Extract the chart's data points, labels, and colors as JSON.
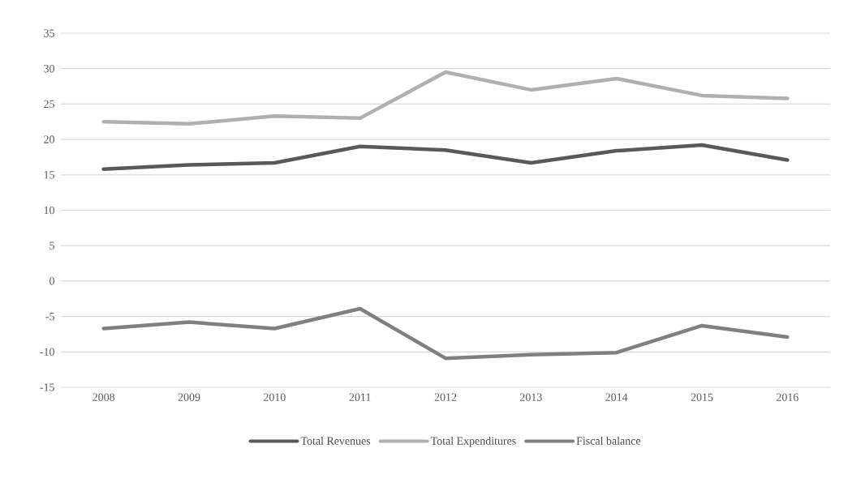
{
  "chart_data": {
    "type": "line",
    "categories": [
      "2008",
      "2009",
      "2010",
      "2011",
      "2012",
      "2013",
      "2014",
      "2015",
      "2016"
    ],
    "series": [
      {
        "name": "Total Revenues",
        "color": "#595959",
        "values": [
          15.8,
          16.4,
          16.7,
          19.0,
          18.5,
          16.7,
          18.4,
          19.2,
          17.1
        ]
      },
      {
        "name": "Total Expenditures",
        "color": "#b0b0b0",
        "values": [
          22.5,
          22.2,
          23.3,
          23.0,
          29.5,
          27.0,
          28.6,
          26.2,
          25.8
        ]
      },
      {
        "name": "Fiscal balance",
        "color": "#808080",
        "values": [
          -6.7,
          -5.8,
          -6.7,
          -3.9,
          -10.9,
          -10.4,
          -10.1,
          -6.3,
          -7.9
        ]
      }
    ],
    "ylim": [
      -15,
      35
    ],
    "yticks": [
      -15,
      -10,
      -5,
      0,
      5,
      10,
      15,
      20,
      25,
      30,
      35
    ],
    "grid": "y",
    "legend": "bottom",
    "marker": "none",
    "line_style": "solid"
  }
}
